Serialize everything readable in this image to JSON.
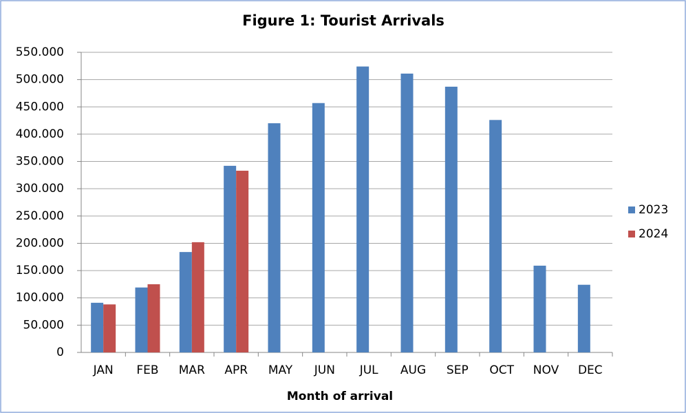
{
  "chart_data": {
    "type": "bar",
    "title": "Figure 1: Tourist Arrivals",
    "x_label": "Month of arrival",
    "categories": [
      "JAN",
      "FEB",
      "MAR",
      "APR",
      "MAY",
      "JUN",
      "JUL",
      "AUG",
      "SEP",
      "OCT",
      "NOV",
      "DEC"
    ],
    "series": [
      {
        "name": "2023",
        "color": "#4f81bd",
        "values": [
          91000,
          119000,
          184000,
          342000,
          420000,
          457000,
          524000,
          511000,
          487000,
          426000,
          159000,
          124000
        ]
      },
      {
        "name": "2024",
        "color": "#c0504d",
        "values": [
          88000,
          125000,
          202000,
          333000,
          null,
          null,
          null,
          null,
          null,
          null,
          null,
          null
        ]
      }
    ],
    "ylim": [
      0,
      550000
    ],
    "yticks": [
      0,
      {
        "value": 50000,
        "label": "50.000"
      },
      {
        "value": 100000,
        "label": "100.000"
      },
      {
        "value": 150000,
        "label": "150.000"
      },
      {
        "value": 200000,
        "label": "200.000"
      },
      {
        "value": 250000,
        "label": "250.000"
      },
      {
        "value": 300000,
        "label": "300.000"
      },
      {
        "value": 350000,
        "label": "350.000"
      },
      {
        "value": 400000,
        "label": "400.000"
      },
      {
        "value": 450000,
        "label": "450.000"
      },
      {
        "value": 500000,
        "label": "500.000"
      },
      {
        "value": 550000,
        "label": "550.000"
      }
    ],
    "grid": true,
    "legend": "right"
  }
}
